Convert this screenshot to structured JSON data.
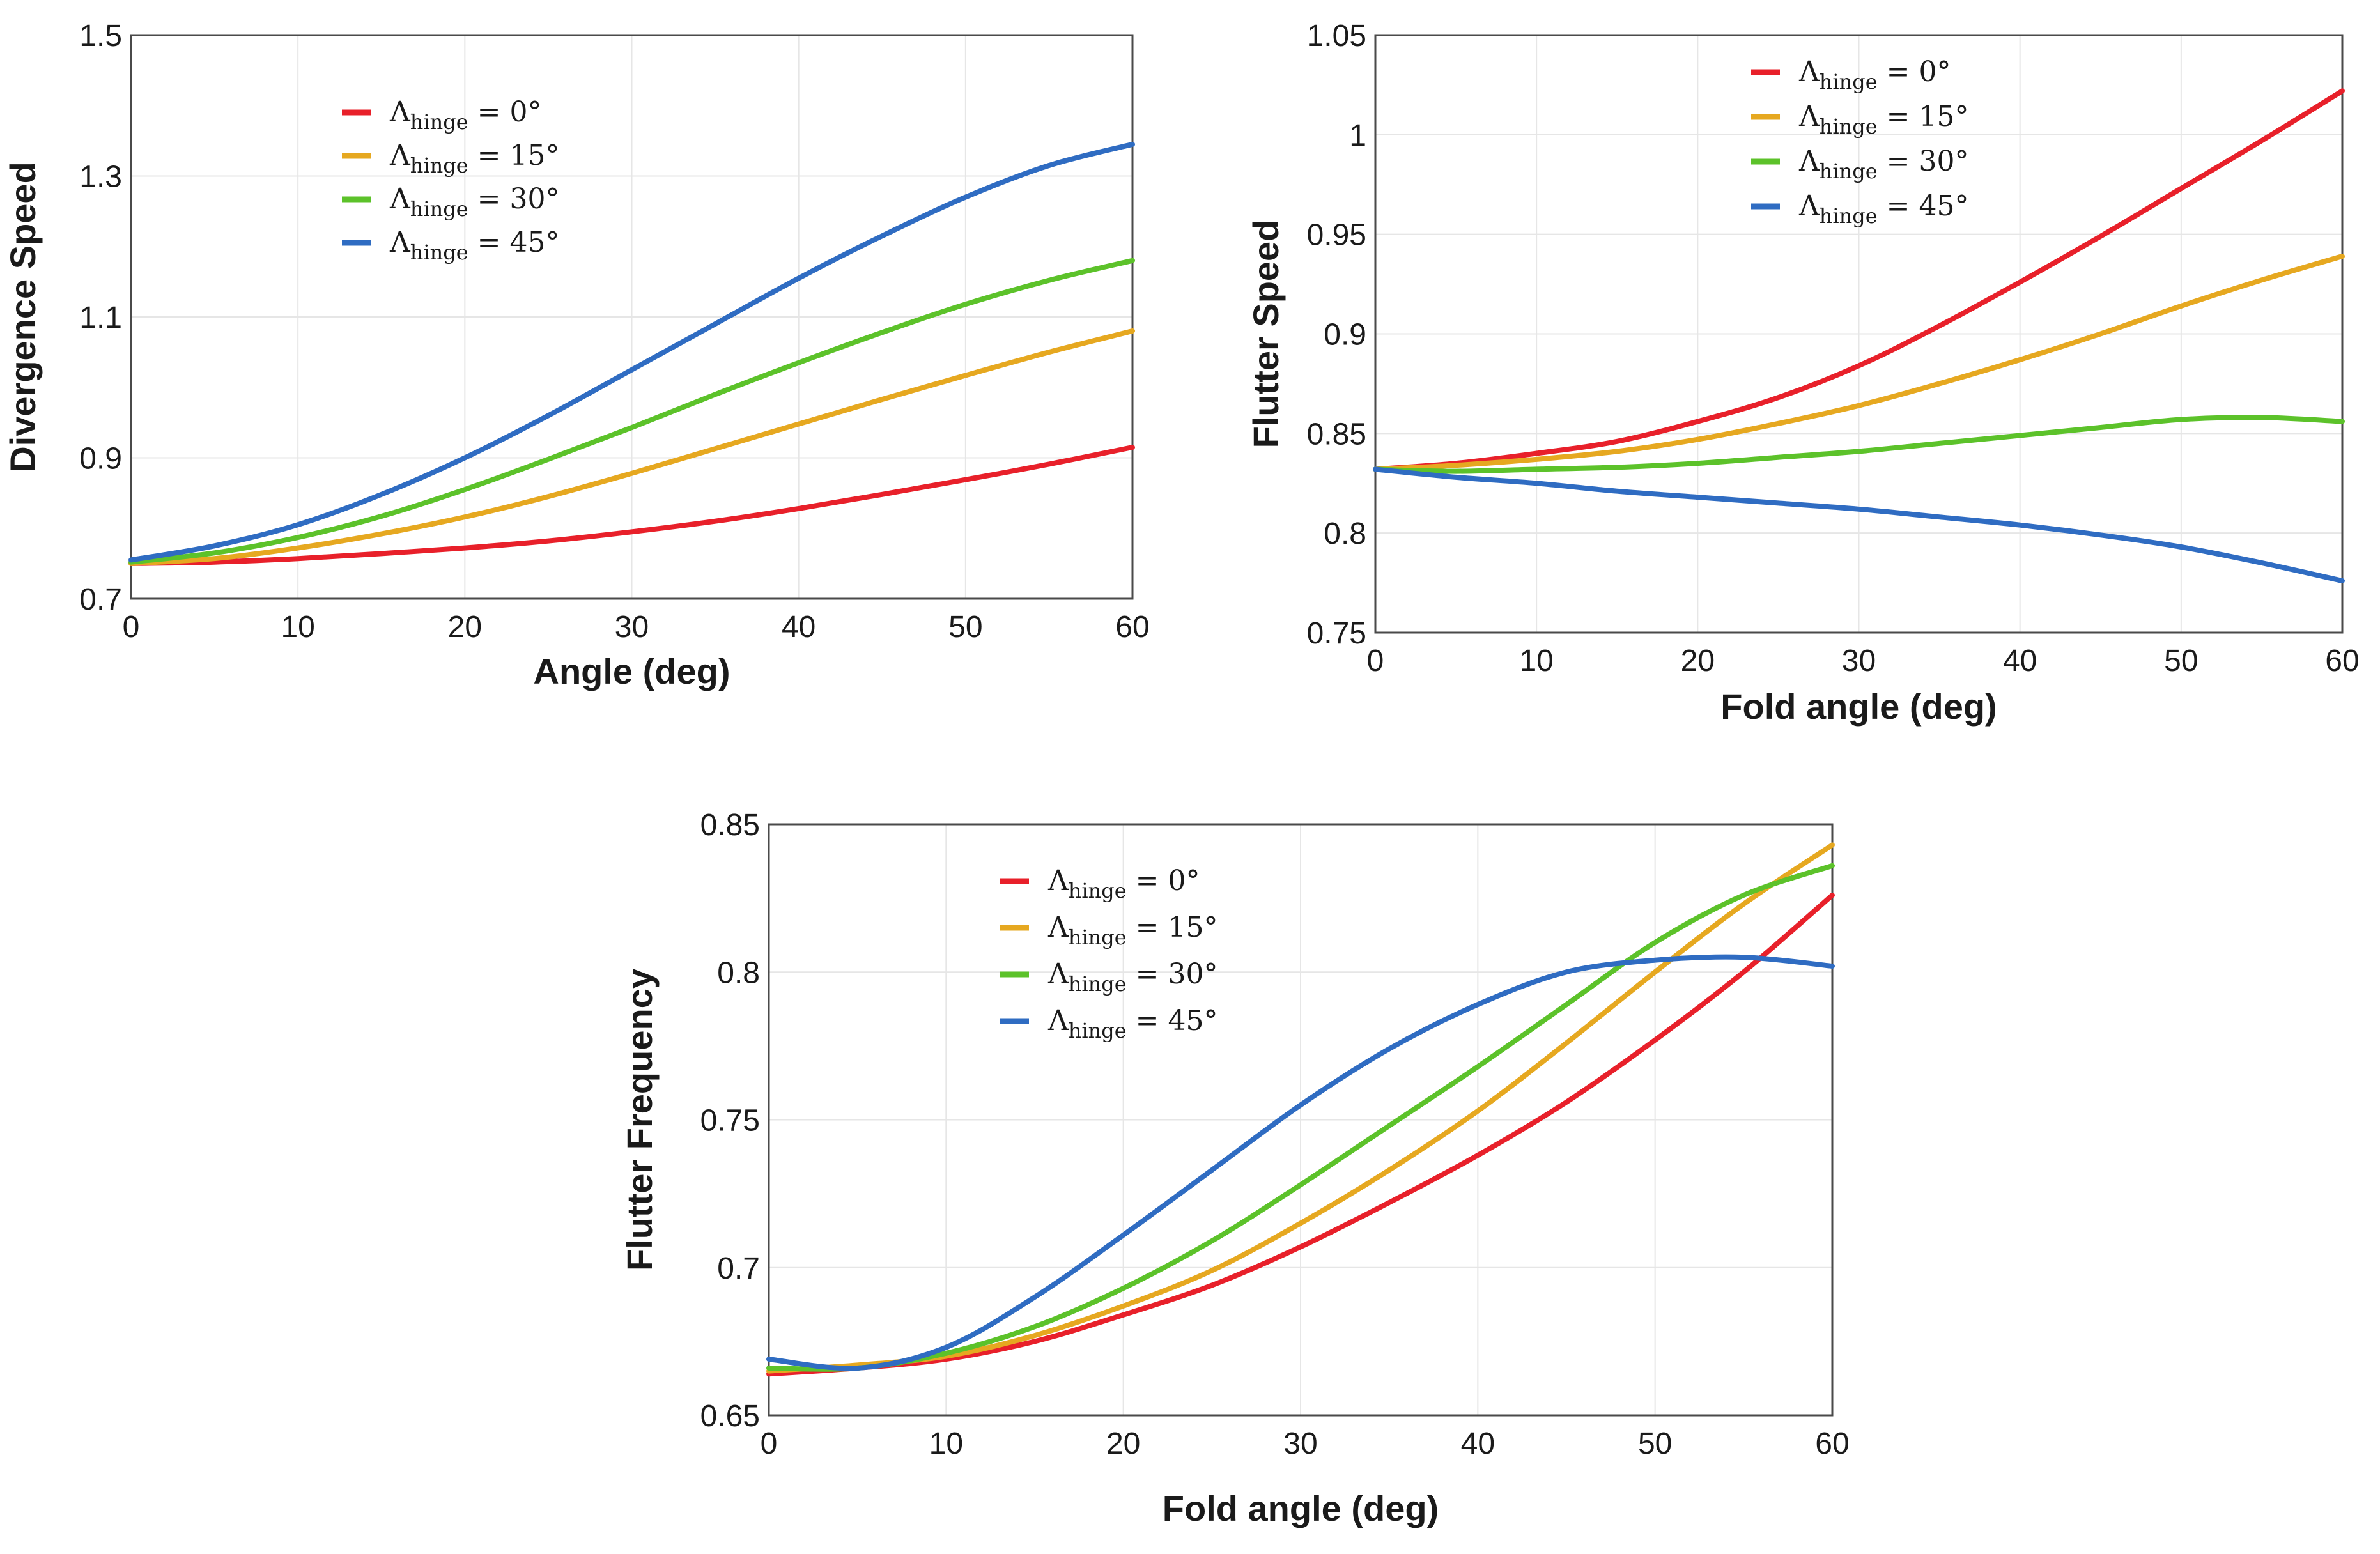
{
  "chart_data": [
    {
      "id": "divergence",
      "type": "line",
      "xlabel": "Angle (deg)",
      "ylabel": "Divergence Speed",
      "xlim": [
        0,
        60
      ],
      "ylim": [
        0.7,
        1.5
      ],
      "xticks": [
        "0",
        "10",
        "20",
        "30",
        "40",
        "50",
        "60"
      ],
      "yticks": [
        "0.7",
        "0.9",
        "1.1",
        "1.3",
        "1.5"
      ],
      "grid": true,
      "legend_position": "upper-left",
      "x": [
        0,
        5,
        10,
        15,
        20,
        25,
        30,
        35,
        40,
        45,
        50,
        55,
        60
      ],
      "series": [
        {
          "name": "0°",
          "color": "#e8202a",
          "values": [
            0.75,
            0.752,
            0.757,
            0.764,
            0.772,
            0.782,
            0.795,
            0.81,
            0.828,
            0.848,
            0.869,
            0.891,
            0.915
          ]
        },
        {
          "name": "15°",
          "color": "#e6a820",
          "values": [
            0.75,
            0.757,
            0.772,
            0.792,
            0.816,
            0.845,
            0.878,
            0.913,
            0.948,
            0.983,
            1.017,
            1.05,
            1.08
          ]
        },
        {
          "name": "30°",
          "color": "#5cc22a",
          "values": [
            0.752,
            0.765,
            0.787,
            0.817,
            0.855,
            0.898,
            0.943,
            0.99,
            1.035,
            1.078,
            1.118,
            1.152,
            1.18
          ]
        },
        {
          "name": "45°",
          "color": "#2f6cc2",
          "values": [
            0.755,
            0.775,
            0.805,
            0.848,
            0.9,
            0.96,
            1.025,
            1.09,
            1.155,
            1.215,
            1.27,
            1.315,
            1.345
          ]
        }
      ]
    },
    {
      "id": "flutter-speed",
      "type": "line",
      "xlabel": "Fold angle (deg)",
      "ylabel": "Flutter Speed",
      "xlim": [
        0,
        60
      ],
      "ylim": [
        0.75,
        1.05
      ],
      "xticks": [
        "0",
        "10",
        "20",
        "30",
        "40",
        "50",
        "60"
      ],
      "yticks": [
        "0.75",
        "0.8",
        "0.85",
        "0.9",
        "0.95",
        "1",
        "1.05"
      ],
      "grid": true,
      "legend_position": "upper-left",
      "x": [
        0,
        5,
        10,
        15,
        20,
        25,
        30,
        35,
        40,
        45,
        50,
        55,
        60
      ],
      "series": [
        {
          "name": "0°",
          "color": "#e8202a",
          "values": [
            0.832,
            0.835,
            0.84,
            0.846,
            0.856,
            0.868,
            0.884,
            0.904,
            0.926,
            0.949,
            0.973,
            0.997,
            1.022
          ]
        },
        {
          "name": "15°",
          "color": "#e6a820",
          "values": [
            0.832,
            0.834,
            0.837,
            0.841,
            0.847,
            0.855,
            0.864,
            0.875,
            0.887,
            0.9,
            0.914,
            0.927,
            0.939
          ]
        },
        {
          "name": "30°",
          "color": "#5cc22a",
          "values": [
            0.832,
            0.831,
            0.832,
            0.833,
            0.835,
            0.838,
            0.841,
            0.845,
            0.849,
            0.853,
            0.857,
            0.858,
            0.856
          ]
        },
        {
          "name": "45°",
          "color": "#2f6cc2",
          "values": [
            0.832,
            0.828,
            0.825,
            0.821,
            0.818,
            0.815,
            0.812,
            0.808,
            0.804,
            0.799,
            0.793,
            0.785,
            0.776
          ]
        }
      ]
    },
    {
      "id": "flutter-frequency",
      "type": "line",
      "xlabel": "Fold angle (deg)",
      "ylabel": "Flutter Frequency",
      "xlim": [
        0,
        60
      ],
      "ylim": [
        0.65,
        0.85
      ],
      "xticks": [
        "0",
        "10",
        "20",
        "30",
        "40",
        "50",
        "60"
      ],
      "yticks": [
        "0.65",
        "0.7",
        "0.75",
        "0.8",
        "0.85"
      ],
      "grid": true,
      "legend_position": "upper-left",
      "x": [
        0,
        5,
        10,
        15,
        20,
        25,
        30,
        35,
        40,
        45,
        50,
        55,
        60
      ],
      "series": [
        {
          "name": "0°",
          "color": "#e8202a",
          "values": [
            0.664,
            0.666,
            0.669,
            0.675,
            0.684,
            0.694,
            0.707,
            0.722,
            0.738,
            0.756,
            0.777,
            0.8,
            0.826
          ]
        },
        {
          "name": "15°",
          "color": "#e6a820",
          "values": [
            0.665,
            0.667,
            0.67,
            0.677,
            0.687,
            0.699,
            0.715,
            0.733,
            0.753,
            0.776,
            0.8,
            0.823,
            0.843
          ]
        },
        {
          "name": "30°",
          "color": "#5cc22a",
          "values": [
            0.666,
            0.666,
            0.671,
            0.68,
            0.693,
            0.709,
            0.728,
            0.748,
            0.768,
            0.789,
            0.81,
            0.826,
            0.836
          ]
        },
        {
          "name": "45°",
          "color": "#2f6cc2",
          "values": [
            0.669,
            0.666,
            0.673,
            0.69,
            0.711,
            0.733,
            0.755,
            0.774,
            0.789,
            0.8,
            0.804,
            0.805,
            0.802
          ]
        }
      ]
    }
  ],
  "legend_symbol": "Λ",
  "legend_subscript": "hinge",
  "legend_operator": "="
}
